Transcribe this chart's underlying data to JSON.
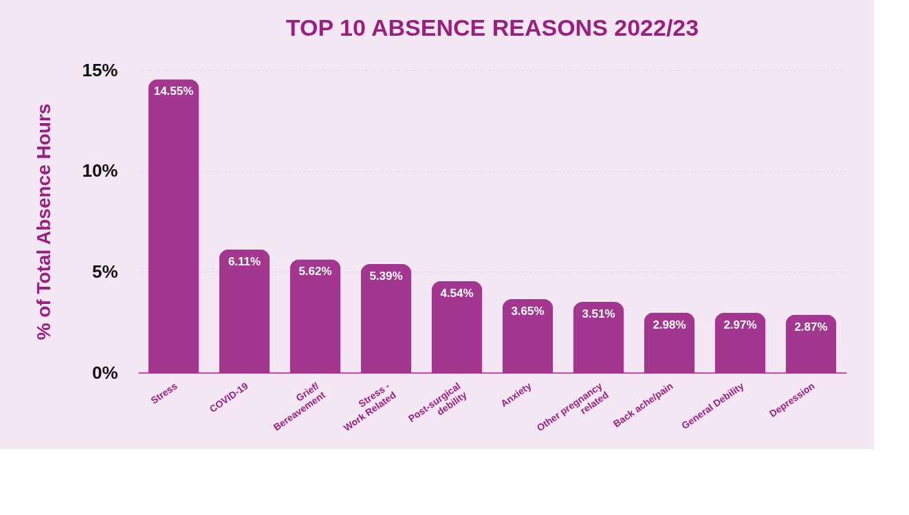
{
  "chart_data": {
    "type": "bar",
    "title": "TOP 10 ABSENCE REASONS 2022/23",
    "ylabel": "% of Total Absence Hours",
    "categories": [
      "Stress",
      "COVID-19",
      "Grief/\nBereavement",
      "Stress -\nWork Related",
      "Post-surgical\ndebility",
      "Anxiety",
      "Other pregnancy\nrelated",
      "Back ache/pain",
      "General Debility",
      "Depression"
    ],
    "values": [
      14.55,
      6.11,
      5.62,
      5.39,
      4.54,
      3.65,
      3.51,
      2.98,
      2.97,
      2.87
    ],
    "value_labels": [
      "14.55%",
      "6.11%",
      "5.62%",
      "5.39%",
      "4.54%",
      "3.65%",
      "3.51%",
      "2.98%",
      "2.97%",
      "2.87%"
    ],
    "color": "#a3378f",
    "ylim": [
      0,
      15
    ],
    "yticks": [
      {
        "value": 0,
        "label": "0%"
      },
      {
        "value": 5,
        "label": "5%"
      },
      {
        "value": 10,
        "label": "10%"
      },
      {
        "value": 15,
        "label": "15%"
      }
    ],
    "grid": "y"
  }
}
